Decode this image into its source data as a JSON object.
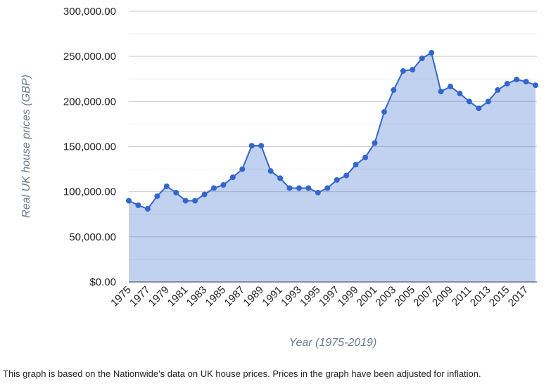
{
  "chart_data": {
    "type": "area",
    "ylabel": "Real UK house prices (GBP)",
    "xlabel": "Year (1975-2019)",
    "categories": [
      "1975",
      null,
      "1977",
      null,
      "1979",
      null,
      "1981",
      null,
      "1983",
      null,
      "1985",
      null,
      "1987",
      null,
      "1989",
      null,
      "1991",
      null,
      "1993",
      null,
      "1995",
      null,
      "1997",
      null,
      "1999",
      null,
      "2001",
      null,
      "2003",
      null,
      "2005",
      null,
      "2007",
      null,
      "2009",
      null,
      "2011",
      null,
      "2013",
      null,
      "2015",
      null,
      "2017",
      null
    ],
    "series": [
      {
        "color": "#3366cc",
        "values": [
          90000,
          85000,
          81000,
          95000,
          106000,
          99000,
          90000,
          90000,
          97000,
          104000,
          107500,
          116000,
          125000,
          151000,
          151000,
          123000,
          115000,
          104000,
          104000,
          104000,
          99000,
          104000,
          113000,
          118000,
          130000,
          138000,
          154000,
          188500,
          212700,
          233800,
          235300,
          247800,
          254000,
          211000,
          216600,
          208800,
          200000,
          192400,
          200000,
          212700,
          219700,
          224400,
          222000,
          218000
        ]
      }
    ],
    "ylim": [
      0,
      300000
    ],
    "yticks": [
      {
        "value": 0,
        "label": "$0.00"
      },
      {
        "value": 50000,
        "label": "50,000.00"
      },
      {
        "value": 100000,
        "label": "100,000.00"
      },
      {
        "value": 150000,
        "label": "150,000.00"
      },
      {
        "value": 200000,
        "label": "200,000.00"
      },
      {
        "value": 250000,
        "label": "250,000.00"
      },
      {
        "value": 300000,
        "label": "300,000.00"
      }
    ],
    "yminorticks": [
      25000,
      75000,
      125000,
      175000,
      225000,
      275000
    ],
    "grid": true
  },
  "note": "This graph is based on the Nationwide's data on UK house prices. Prices in the graph have been adjusted for inflation."
}
